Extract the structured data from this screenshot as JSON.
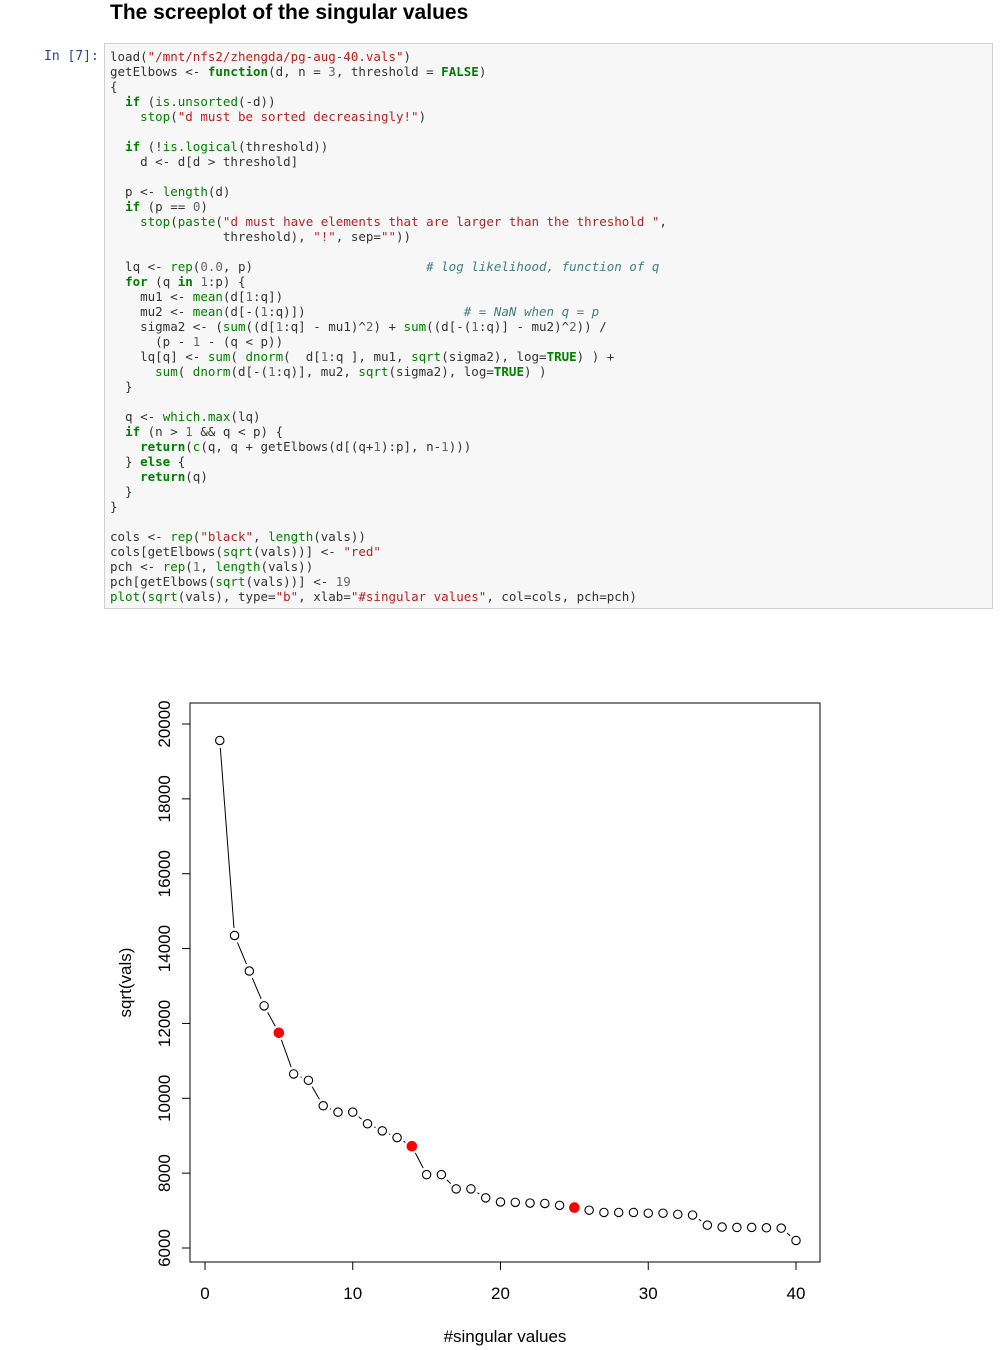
{
  "heading": "The screeplot of the singular values",
  "cell": {
    "prompt": "In [7]:",
    "code_lines": [
      [
        [
          "load(",
          ""
        ],
        [
          "\"/mnt/nfs2/zhengda/pg-aug-40.vals\"",
          "st"
        ],
        [
          ")",
          ""
        ]
      ],
      [
        [
          "getElbows <- ",
          ""
        ],
        [
          "function",
          "kw"
        ],
        [
          "(d, n = ",
          ""
        ],
        [
          "3",
          "nu"
        ],
        [
          ", threshold = ",
          ""
        ],
        [
          "FALSE",
          "kw"
        ],
        [
          ")",
          ""
        ]
      ],
      [
        [
          "{",
          ""
        ]
      ],
      [
        [
          "  ",
          ""
        ],
        [
          "if",
          "kw"
        ],
        [
          " (",
          ""
        ],
        [
          "is.unsorted",
          "fn"
        ],
        [
          "(-d))",
          ""
        ]
      ],
      [
        [
          "    ",
          ""
        ],
        [
          "stop",
          "fn"
        ],
        [
          "(",
          ""
        ],
        [
          "\"d must be sorted decreasingly!\"",
          "st"
        ],
        [
          ")",
          ""
        ]
      ],
      [
        [
          "",
          ""
        ]
      ],
      [
        [
          "  ",
          ""
        ],
        [
          "if",
          "kw"
        ],
        [
          " (!",
          ""
        ],
        [
          "is.logical",
          "fn"
        ],
        [
          "(threshold))",
          ""
        ]
      ],
      [
        [
          "    d <- d[d > threshold]",
          ""
        ]
      ],
      [
        [
          "",
          ""
        ]
      ],
      [
        [
          "  p <- ",
          ""
        ],
        [
          "length",
          "fn"
        ],
        [
          "(d)",
          ""
        ]
      ],
      [
        [
          "  ",
          ""
        ],
        [
          "if",
          "kw"
        ],
        [
          " (p == ",
          ""
        ],
        [
          "0",
          "nu"
        ],
        [
          ")",
          ""
        ]
      ],
      [
        [
          "    ",
          ""
        ],
        [
          "stop",
          "fn"
        ],
        [
          "(",
          ""
        ],
        [
          "paste",
          "fn"
        ],
        [
          "(",
          ""
        ],
        [
          "\"d must have elements that are larger than the threshold \"",
          "st"
        ],
        [
          ",",
          ""
        ]
      ],
      [
        [
          "               threshold), ",
          ""
        ],
        [
          "\"!\"",
          "st"
        ],
        [
          ", sep=",
          ""
        ],
        [
          "\"\"",
          "st"
        ],
        [
          "))",
          ""
        ]
      ],
      [
        [
          "",
          ""
        ]
      ],
      [
        [
          "  lq <- ",
          ""
        ],
        [
          "rep",
          "fn"
        ],
        [
          "(",
          ""
        ],
        [
          "0.0",
          "nu"
        ],
        [
          ", p)                       ",
          ""
        ],
        [
          "# log likelihood, function of q",
          "cm"
        ]
      ],
      [
        [
          "  ",
          ""
        ],
        [
          "for",
          "kw"
        ],
        [
          " (q ",
          ""
        ],
        [
          "in",
          "kw"
        ],
        [
          " ",
          ""
        ],
        [
          "1",
          "nu"
        ],
        [
          ":p) {",
          ""
        ]
      ],
      [
        [
          "    mu1 <- ",
          ""
        ],
        [
          "mean",
          "fn"
        ],
        [
          "(d[",
          ""
        ],
        [
          "1",
          "nu"
        ],
        [
          ":q])",
          ""
        ]
      ],
      [
        [
          "    mu2 <- ",
          ""
        ],
        [
          "mean",
          "fn"
        ],
        [
          "(d[-(",
          ""
        ],
        [
          "1",
          "nu"
        ],
        [
          ":q)])                     ",
          ""
        ],
        [
          "# = NaN when q = p",
          "cm"
        ]
      ],
      [
        [
          "    sigma2 <- (",
          ""
        ],
        [
          "sum",
          "fn"
        ],
        [
          "((d[",
          ""
        ],
        [
          "1",
          "nu"
        ],
        [
          ":q] - mu1)^",
          ""
        ],
        [
          "2",
          "nu"
        ],
        [
          ") + ",
          ""
        ],
        [
          "sum",
          "fn"
        ],
        [
          "((d[-(",
          ""
        ],
        [
          "1",
          "nu"
        ],
        [
          ":q)] - mu2)^",
          ""
        ],
        [
          "2",
          "nu"
        ],
        [
          ")) /",
          ""
        ]
      ],
      [
        [
          "      (p - ",
          ""
        ],
        [
          "1",
          "nu"
        ],
        [
          " - (q < p))",
          ""
        ]
      ],
      [
        [
          "    lq[q] <- ",
          ""
        ],
        [
          "sum",
          "fn"
        ],
        [
          "( ",
          ""
        ],
        [
          "dnorm",
          "fn"
        ],
        [
          "(  d[",
          ""
        ],
        [
          "1",
          "nu"
        ],
        [
          ":q ], mu1, ",
          ""
        ],
        [
          "sqrt",
          "fn"
        ],
        [
          "(sigma2), log=",
          ""
        ],
        [
          "TRUE",
          "kw"
        ],
        [
          ") ) +",
          ""
        ]
      ],
      [
        [
          "      ",
          ""
        ],
        [
          "sum",
          "fn"
        ],
        [
          "( ",
          ""
        ],
        [
          "dnorm",
          "fn"
        ],
        [
          "(d[-(",
          ""
        ],
        [
          "1",
          "nu"
        ],
        [
          ":q)], mu2, ",
          ""
        ],
        [
          "sqrt",
          "fn"
        ],
        [
          "(sigma2), log=",
          ""
        ],
        [
          "TRUE",
          "kw"
        ],
        [
          ") )",
          ""
        ]
      ],
      [
        [
          "  }",
          ""
        ]
      ],
      [
        [
          "",
          ""
        ]
      ],
      [
        [
          "  q <- ",
          ""
        ],
        [
          "which.max",
          "fn"
        ],
        [
          "(lq)",
          ""
        ]
      ],
      [
        [
          "  ",
          ""
        ],
        [
          "if",
          "kw"
        ],
        [
          " (n > ",
          ""
        ],
        [
          "1",
          "nu"
        ],
        [
          " && q < p) {",
          ""
        ]
      ],
      [
        [
          "    ",
          ""
        ],
        [
          "return",
          "kw"
        ],
        [
          "(",
          ""
        ],
        [
          "c",
          "fn"
        ],
        [
          "(q, q + getElbows(d[(q+",
          ""
        ],
        [
          "1",
          "nu"
        ],
        [
          "):p], n-",
          ""
        ],
        [
          "1",
          "nu"
        ],
        [
          ")))",
          ""
        ]
      ],
      [
        [
          "  } ",
          ""
        ],
        [
          "else",
          "kw"
        ],
        [
          " {",
          ""
        ]
      ],
      [
        [
          "    ",
          ""
        ],
        [
          "return",
          "kw"
        ],
        [
          "(q)",
          ""
        ]
      ],
      [
        [
          "  }",
          ""
        ]
      ],
      [
        [
          "}",
          ""
        ]
      ],
      [
        [
          "",
          ""
        ]
      ],
      [
        [
          "cols <- ",
          ""
        ],
        [
          "rep",
          "fn"
        ],
        [
          "(",
          ""
        ],
        [
          "\"black\"",
          "st"
        ],
        [
          ", ",
          ""
        ],
        [
          "length",
          "fn"
        ],
        [
          "(vals))",
          ""
        ]
      ],
      [
        [
          "cols[getElbows(",
          ""
        ],
        [
          "sqrt",
          "fn"
        ],
        [
          "(vals))] <- ",
          ""
        ],
        [
          "\"red\"",
          "st"
        ]
      ],
      [
        [
          "pch <- ",
          ""
        ],
        [
          "rep",
          "fn"
        ],
        [
          "(",
          ""
        ],
        [
          "1",
          "nu"
        ],
        [
          ", ",
          ""
        ],
        [
          "length",
          "fn"
        ],
        [
          "(vals))",
          ""
        ]
      ],
      [
        [
          "pch[getElbows(",
          ""
        ],
        [
          "sqrt",
          "fn"
        ],
        [
          "(vals))] <- ",
          ""
        ],
        [
          "19",
          "nu"
        ]
      ],
      [
        [
          "",
          ""
        ],
        [
          "plot",
          "fn"
        ],
        [
          "(",
          ""
        ],
        [
          "sqrt",
          "fn"
        ],
        [
          "(vals), type=",
          ""
        ],
        [
          "\"b\"",
          "st"
        ],
        [
          ", xlab=",
          ""
        ],
        [
          "\"#singular values\"",
          "st"
        ],
        [
          ", col=cols, pch=pch)",
          ""
        ]
      ]
    ]
  },
  "chart_data": {
    "type": "line",
    "plot_type": "b",
    "xlabel": "#singular values",
    "ylabel": "sqrt(vals)",
    "xlim": [
      0,
      40
    ],
    "ylim": [
      6000,
      20000
    ],
    "x_ticks": [
      0,
      10,
      20,
      30,
      40
    ],
    "y_ticks": [
      6000,
      8000,
      10000,
      12000,
      14000,
      16000,
      18000,
      20000
    ],
    "x": [
      1,
      2,
      3,
      4,
      5,
      6,
      7,
      8,
      9,
      10,
      11,
      12,
      13,
      14,
      15,
      16,
      17,
      18,
      19,
      20,
      21,
      22,
      23,
      24,
      25,
      26,
      27,
      28,
      29,
      30,
      31,
      32,
      33,
      34,
      35,
      36,
      37,
      38,
      39,
      40
    ],
    "y": [
      19560,
      14350,
      13400,
      12470,
      11750,
      10650,
      10480,
      9800,
      9630,
      9630,
      9320,
      9130,
      8950,
      8720,
      7960,
      7960,
      7580,
      7580,
      7340,
      7230,
      7220,
      7200,
      7190,
      7140,
      7080,
      7010,
      6950,
      6950,
      6950,
      6930,
      6930,
      6900,
      6880,
      6610,
      6560,
      6550,
      6550,
      6540,
      6530,
      6200
    ],
    "elbows": [
      5,
      14,
      25
    ],
    "point_color": "#000000",
    "elbow_color": "#ff0000",
    "grid": false
  }
}
